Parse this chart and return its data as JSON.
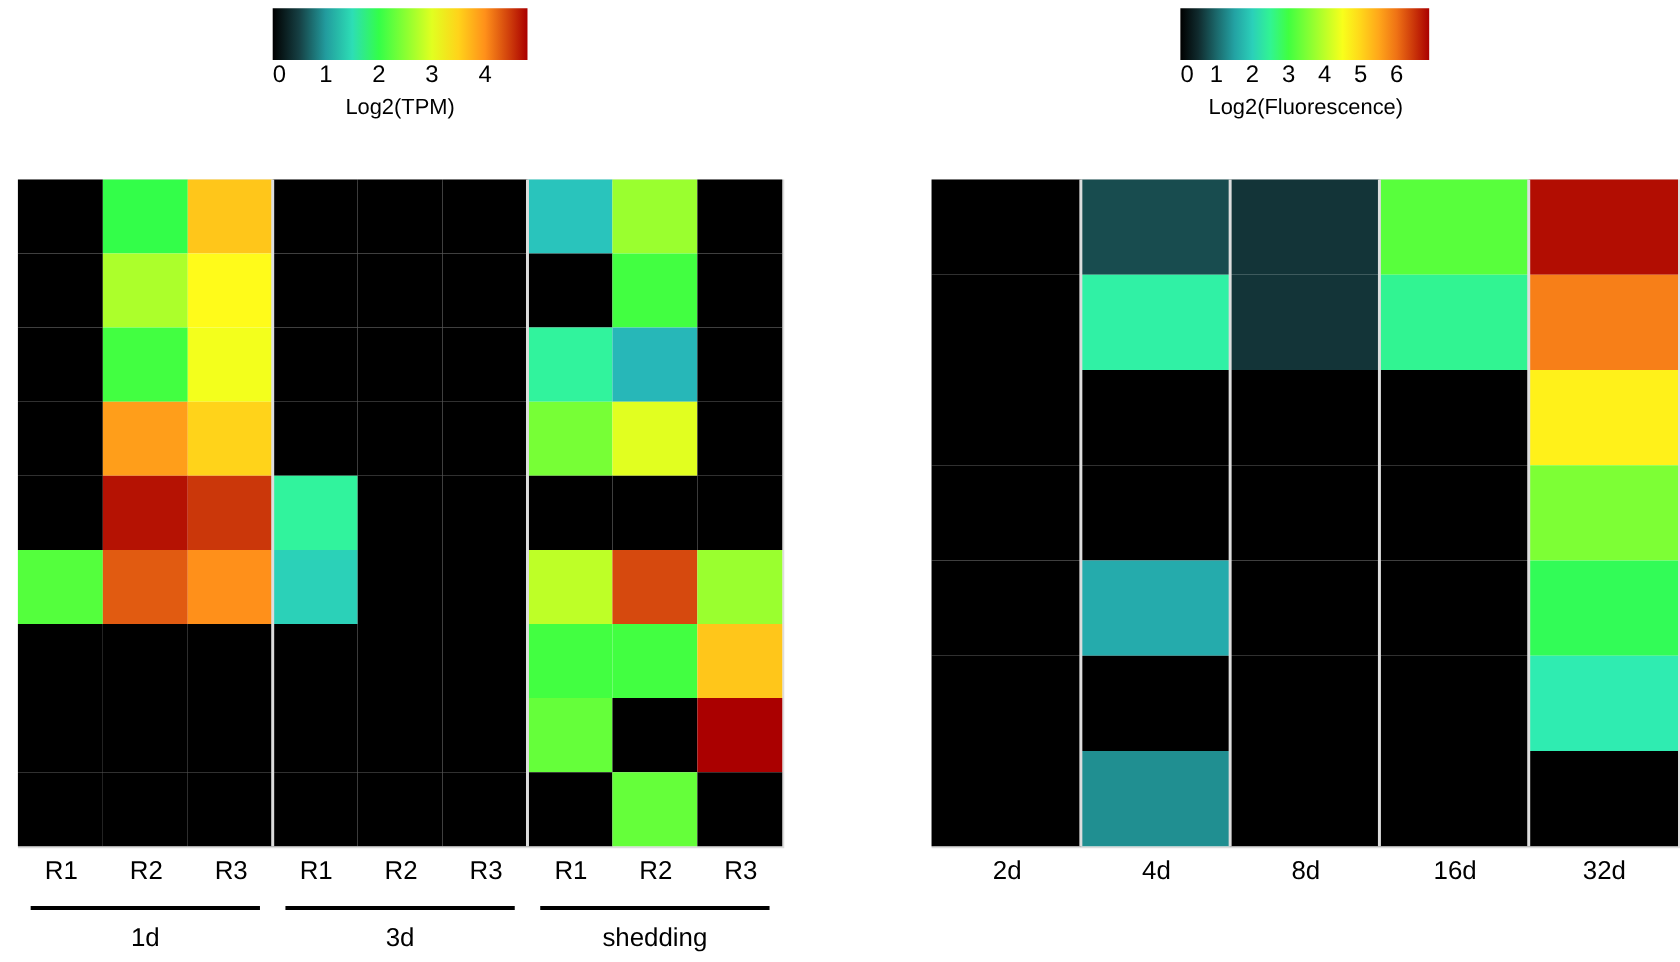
{
  "chart_data": [
    {
      "type": "heatmap",
      "clabel": "Log2(TPM)",
      "categories": [
        "R1",
        "R2",
        "R3",
        "R1",
        "R2",
        "R3",
        "R1",
        "R2",
        "R3"
      ],
      "y_categories": [
        null,
        null,
        null,
        null,
        null,
        null,
        null,
        null,
        null
      ],
      "annotations": [
        "1d",
        "3d",
        "shedding"
      ],
      "cells": [
        [
          0,
          2.0,
          3.6,
          0,
          0,
          0,
          1.3,
          2.6,
          0
        ],
        [
          0,
          2.7,
          3.2,
          0,
          0,
          0,
          0,
          2.1,
          0
        ],
        [
          0,
          2.1,
          3.1,
          0,
          0,
          0,
          1.7,
          1.2,
          0
        ],
        [
          0,
          3.9,
          3.5,
          0,
          0,
          0,
          2.4,
          3.0,
          0
        ],
        [
          0,
          4.7,
          4.5,
          1.7,
          0,
          0,
          0,
          0,
          0
        ],
        [
          2.2,
          4.3,
          4.0,
          1.4,
          0,
          0,
          2.8,
          4.4,
          2.6
        ],
        [
          0,
          0,
          0,
          0,
          0,
          0,
          2.1,
          2.1,
          3.6
        ],
        [
          0,
          0,
          0,
          0,
          0,
          0,
          2.3,
          0,
          4.8
        ],
        [
          0,
          0,
          0,
          0,
          0,
          0,
          0,
          2.3,
          0
        ]
      ],
      "clim": [
        0,
        4.8
      ],
      "cticks": [
        0,
        1,
        2,
        3,
        4
      ]
    },
    {
      "type": "heatmap",
      "clabel": "Log2(Fluorescence)",
      "categories": [
        "2d",
        "4d",
        "8d",
        "16d",
        "32d"
      ],
      "y_categories": [
        null,
        null,
        null,
        null,
        null,
        null,
        null
      ],
      "cells": [
        [
          0,
          0.8,
          0.6,
          3.2,
          6.8
        ],
        [
          0,
          2.4,
          0.6,
          2.5,
          5.9
        ],
        [
          0,
          0,
          0,
          0,
          4.7
        ],
        [
          0,
          0,
          0,
          0,
          3.5
        ],
        [
          0,
          1.6,
          0,
          0,
          2.8
        ],
        [
          0,
          0,
          0,
          0,
          2.3
        ],
        [
          0,
          1.3,
          0,
          0,
          0
        ]
      ],
      "clim": [
        0,
        6.9
      ],
      "cticks": [
        0,
        1,
        2,
        3,
        4,
        5,
        6
      ]
    }
  ]
}
